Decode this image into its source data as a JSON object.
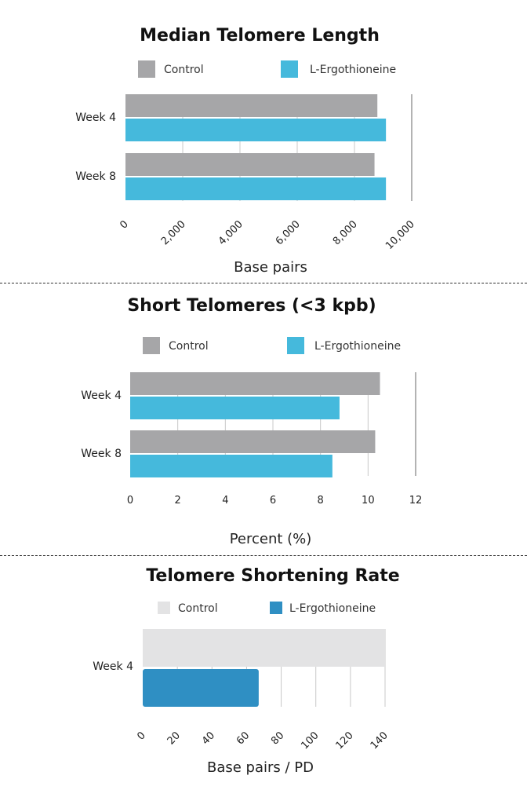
{
  "colors": {
    "control": "#a6a6a8",
    "treatment": "#45b9dc",
    "control_light": "#e3e3e4",
    "treatment_dark": "#2f8fc3",
    "grid": "#c8c8c8"
  },
  "chart_data": [
    {
      "type": "bar",
      "orientation": "horizontal",
      "title": "Median Telomere Length",
      "categories": [
        "Week 4",
        "Week 8"
      ],
      "series": [
        {
          "name": "Control",
          "values": [
            8800,
            8700
          ]
        },
        {
          "name": "L-Ergothioneine",
          "values": [
            9100,
            9100
          ]
        }
      ],
      "xlabel": "Base pairs",
      "ylabel": "",
      "xlim": [
        0,
        10000
      ],
      "ticks": [
        "0",
        "2,000",
        "4,000",
        "6,000",
        "8,000",
        "10,000"
      ],
      "tick_values": [
        0,
        2000,
        4000,
        6000,
        8000,
        10000
      ],
      "grid": true,
      "legend": "top"
    },
    {
      "type": "bar",
      "orientation": "horizontal",
      "title": "Short Telomeres (<3 kpb)",
      "categories": [
        "Week 4",
        "Week 8"
      ],
      "series": [
        {
          "name": "Control",
          "values": [
            10.5,
            10.3
          ]
        },
        {
          "name": "L-Ergothioneine",
          "values": [
            8.8,
            8.5
          ]
        }
      ],
      "xlabel": "Percent (%)",
      "ylabel": "",
      "xlim": [
        0,
        12
      ],
      "ticks": [
        "0",
        "2",
        "4",
        "6",
        "8",
        "10",
        "12"
      ],
      "tick_values": [
        0,
        2,
        4,
        6,
        8,
        10,
        12
      ],
      "grid": true,
      "legend": "top"
    },
    {
      "type": "bar",
      "orientation": "horizontal",
      "title": "Telomere Shortening Rate",
      "categories": [
        "Week 4"
      ],
      "series": [
        {
          "name": "Control",
          "values": [
            140
          ]
        },
        {
          "name": "L-Ergothioneine",
          "values": [
            67
          ]
        }
      ],
      "xlabel": "Base pairs / PD",
      "ylabel": "",
      "xlim": [
        0,
        140
      ],
      "ticks": [
        "0",
        "20",
        "40",
        "60",
        "80",
        "100",
        "120",
        "140"
      ],
      "tick_values": [
        0,
        20,
        40,
        60,
        80,
        100,
        120,
        140
      ],
      "grid": true,
      "legend": "top"
    }
  ]
}
